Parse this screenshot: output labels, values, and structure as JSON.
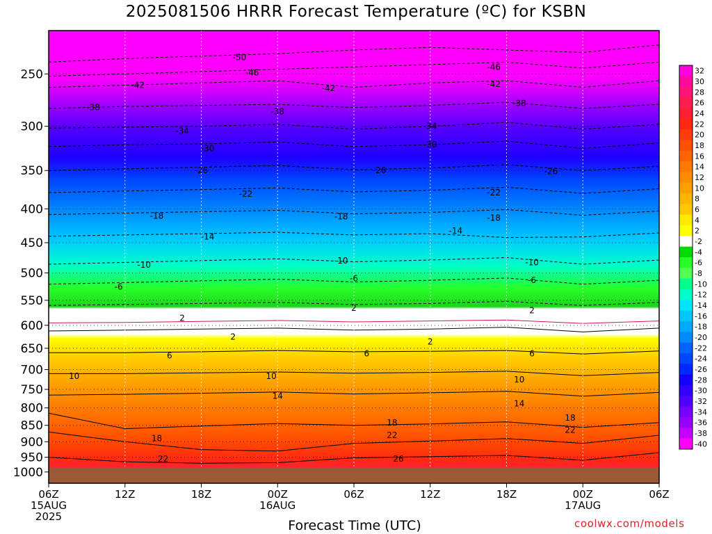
{
  "title": "2025081506 HRRR Forecast Temperature (ºC) for KSBN",
  "xlabel": "Forecast Time (UTC)",
  "credit": "coolwx.com/models",
  "chart_data": {
    "type": "heatmap",
    "title": "2025081506 HRRR Forecast Temperature (ºC) for KSBN",
    "xlabel": "Forecast Time (UTC)",
    "ylabel": "",
    "y_scale": "log-pressure (hPa, inverted)",
    "ylim_hPa": [
      1040,
      215
    ],
    "x_hours_range": [
      0,
      48
    ],
    "grid": true,
    "x_ticks": [
      {
        "hours": 0,
        "lines": [
          "06Z",
          "15AUG",
          "2025"
        ]
      },
      {
        "hours": 6,
        "lines": [
          "12Z"
        ]
      },
      {
        "hours": 12,
        "lines": [
          "18Z"
        ]
      },
      {
        "hours": 18,
        "lines": [
          "00Z",
          "16AUG"
        ]
      },
      {
        "hours": 24,
        "lines": [
          "06Z"
        ]
      },
      {
        "hours": 30,
        "lines": [
          "12Z"
        ]
      },
      {
        "hours": 36,
        "lines": [
          "18Z"
        ]
      },
      {
        "hours": 42,
        "lines": [
          "00Z",
          "17AUG"
        ]
      },
      {
        "hours": 48,
        "lines": [
          "06Z"
        ]
      }
    ],
    "y_ticks": [
      250,
      300,
      350,
      400,
      450,
      500,
      550,
      600,
      650,
      700,
      750,
      800,
      850,
      900,
      950,
      1000
    ],
    "surface_pressure_hPa": 985,
    "surface_color": "#9b5a37",
    "isotherms": [
      {
        "temp": -50,
        "p": [
          240,
          237,
          235,
          233,
          230,
          228,
          230,
          232,
          226
        ]
      },
      {
        "temp": -46,
        "p": [
          252,
          250,
          248,
          246,
          244,
          242,
          240,
          245,
          240
        ]
      },
      {
        "temp": -42,
        "p": [
          262,
          260,
          258,
          256,
          262,
          258,
          256,
          262,
          256
        ]
      },
      {
        "temp": -38,
        "p": [
          282,
          280,
          279,
          278,
          281,
          279,
          276,
          282,
          278
        ]
      },
      {
        "temp": -34,
        "p": [
          302,
          301,
          300,
          298,
          303,
          300,
          296,
          303,
          298
        ]
      },
      {
        "temp": -30,
        "p": [
          322,
          320,
          319,
          317,
          322,
          320,
          316,
          324,
          318
        ]
      },
      {
        "temp": -26,
        "p": [
          350,
          348,
          346,
          344,
          349,
          347,
          343,
          350,
          345
        ]
      },
      {
        "temp": -22,
        "p": [
          378,
          376,
          374,
          372,
          377,
          375,
          371,
          379,
          373
        ]
      },
      {
        "temp": -18,
        "p": [
          408,
          406,
          404,
          402,
          407,
          405,
          401,
          409,
          403
        ]
      },
      {
        "temp": -14,
        "p": [
          440,
          438,
          436,
          434,
          438,
          436,
          442,
          441,
          435
        ]
      },
      {
        "temp": -10,
        "p": [
          485,
          482,
          479,
          476,
          481,
          478,
          474,
          485,
          478
        ]
      },
      {
        "temp": -6,
        "p": [
          520,
          517,
          514,
          511,
          516,
          513,
          509,
          520,
          513
        ]
      },
      {
        "temp": -2,
        "p": [
          560,
          558,
          556,
          554,
          558,
          556,
          552,
          560,
          554
        ]
      },
      {
        "temp": 0,
        "p": [
          595,
          594,
          592,
          590,
          593,
          591,
          589,
          596,
          591
        ]
      },
      {
        "temp": 2,
        "p": [
          612,
          610,
          608,
          606,
          610,
          608,
          604,
          614,
          606
        ]
      },
      {
        "temp": 6,
        "p": [
          660,
          660,
          658,
          655,
          658,
          657,
          655,
          663,
          656
        ]
      },
      {
        "temp": 10,
        "p": [
          710,
          710,
          708,
          706,
          709,
          707,
          704,
          715,
          707
        ]
      },
      {
        "temp": 14,
        "p": [
          765,
          763,
          760,
          757,
          762,
          759,
          755,
          768,
          758
        ]
      },
      {
        "temp": 18,
        "p": [
          815,
          860,
          852,
          845,
          850,
          846,
          840,
          856,
          842
        ]
      },
      {
        "temp": 22,
        "p": [
          870,
          900,
          925,
          930,
          905,
          898,
          890,
          905,
          880
        ]
      },
      {
        "temp": 26,
        "p": [
          950,
          965,
          970,
          968,
          952,
          948,
          944,
          960,
          935
        ]
      }
    ],
    "contour_labels": [
      {
        "text": "-50",
        "hours": 15.0,
        "p": 236
      },
      {
        "text": "-46",
        "hours": 16.0,
        "p": 249
      },
      {
        "text": "-46",
        "hours": 35.0,
        "p": 244
      },
      {
        "text": "-42",
        "hours": 7.0,
        "p": 260
      },
      {
        "text": "-42",
        "hours": 22.0,
        "p": 263
      },
      {
        "text": "-42",
        "hours": 35.0,
        "p": 259
      },
      {
        "text": "-38",
        "hours": 3.5,
        "p": 281
      },
      {
        "text": "-38",
        "hours": 18.0,
        "p": 285
      },
      {
        "text": "-38",
        "hours": 37.0,
        "p": 277
      },
      {
        "text": "-34",
        "hours": 10.5,
        "p": 305
      },
      {
        "text": "-34",
        "hours": 30.0,
        "p": 300
      },
      {
        "text": "-30",
        "hours": 12.5,
        "p": 324
      },
      {
        "text": "-30",
        "hours": 30.0,
        "p": 320
      },
      {
        "text": "-26",
        "hours": 12.0,
        "p": 350
      },
      {
        "text": "-26",
        "hours": 26.0,
        "p": 350
      },
      {
        "text": "-26",
        "hours": 39.5,
        "p": 351
      },
      {
        "text": "-22",
        "hours": 15.5,
        "p": 380
      },
      {
        "text": "-22",
        "hours": 35.0,
        "p": 378
      },
      {
        "text": "-18",
        "hours": 8.5,
        "p": 410
      },
      {
        "text": "-18",
        "hours": 23.0,
        "p": 411
      },
      {
        "text": "-18",
        "hours": 35.0,
        "p": 413
      },
      {
        "text": "-14",
        "hours": 12.5,
        "p": 441
      },
      {
        "text": "-14",
        "hours": 32.0,
        "p": 432
      },
      {
        "text": "-10",
        "hours": 7.5,
        "p": 486
      },
      {
        "text": "-10",
        "hours": 23.0,
        "p": 479
      },
      {
        "text": "-10",
        "hours": 38.0,
        "p": 482
      },
      {
        "text": "-6",
        "hours": 5.5,
        "p": 525
      },
      {
        "text": "-6",
        "hours": 24.0,
        "p": 510
      },
      {
        "text": "-6",
        "hours": 38.0,
        "p": 513
      },
      {
        "text": "2",
        "hours": 10.5,
        "p": 585
      },
      {
        "text": "2",
        "hours": 24.0,
        "p": 565
      },
      {
        "text": "2",
        "hours": 38.0,
        "p": 570
      },
      {
        "text": "2",
        "hours": 14.5,
        "p": 625
      },
      {
        "text": "2",
        "hours": 30.0,
        "p": 635
      },
      {
        "text": "6",
        "hours": 9.5,
        "p": 667
      },
      {
        "text": "6",
        "hours": 25.0,
        "p": 662
      },
      {
        "text": "6",
        "hours": 38.0,
        "p": 662
      },
      {
        "text": "10",
        "hours": 2.0,
        "p": 716
      },
      {
        "text": "10",
        "hours": 17.5,
        "p": 716
      },
      {
        "text": "10",
        "hours": 37.0,
        "p": 725
      },
      {
        "text": "14",
        "hours": 18.0,
        "p": 767
      },
      {
        "text": "14",
        "hours": 37.0,
        "p": 788
      },
      {
        "text": "18",
        "hours": 8.5,
        "p": 890
      },
      {
        "text": "18",
        "hours": 27.0,
        "p": 842
      },
      {
        "text": "18",
        "hours": 41.0,
        "p": 828
      },
      {
        "text": "22",
        "hours": 9.0,
        "p": 955
      },
      {
        "text": "22",
        "hours": 27.0,
        "p": 880
      },
      {
        "text": "22",
        "hours": 41.0,
        "p": 864
      },
      {
        "text": "26",
        "hours": 27.5,
        "p": 955
      }
    ],
    "colorbar": {
      "labels": [
        "32",
        "30",
        "28",
        "26",
        "24",
        "22",
        "20",
        "18",
        "16",
        "14",
        "12",
        "10",
        "8",
        "6",
        "4",
        "2",
        "-2",
        "-4",
        "-6",
        "-8",
        "-10",
        "-12",
        "-14",
        "-16",
        "-18",
        "-20",
        "-22",
        "-24",
        "-26",
        "-28",
        "-30",
        "-32",
        "-34",
        "-36",
        "-38",
        "-40"
      ],
      "colors": [
        "#ff00e0",
        "#ff0aa0",
        "#ff1478",
        "#ff1e50",
        "#ff1e32",
        "#ff2814",
        "#ff3c0a",
        "#ff5000",
        "#ff6400",
        "#ff7800",
        "#ff8c00",
        "#ffa000",
        "#ffb400",
        "#ffc800",
        "#ffeb00",
        "#ffff00",
        "#ffffff",
        "#00dc00",
        "#28ff28",
        "#50ff50",
        "#00ff8c",
        "#00ffc8",
        "#00e6ff",
        "#00c8ff",
        "#00aaff",
        "#008cff",
        "#0064ff",
        "#0046ff",
        "#0028ff",
        "#1400ff",
        "#3200ff",
        "#5000ff",
        "#7800ff",
        "#9600ff",
        "#c800ff",
        "#ff00ff"
      ]
    }
  }
}
